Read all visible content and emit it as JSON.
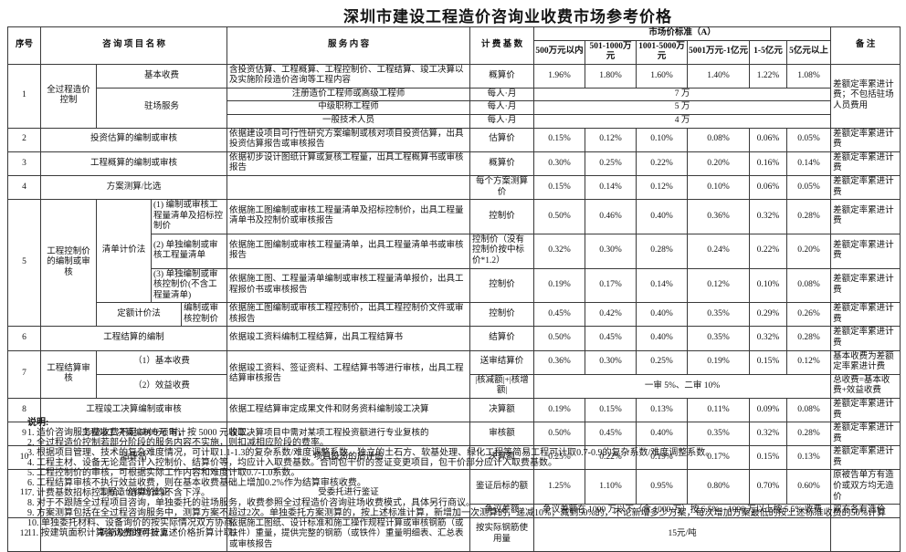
{
  "title": "深圳市建设工程造价咨询业收费市场参考价格",
  "table": {
    "header": [
      [
        {
          "t": "序号",
          "r": 2,
          "n": "col-header-seq"
        },
        {
          "t": "咨 询 项 目 名 称",
          "c": 4,
          "r": 2,
          "n": "col-header-project"
        },
        {
          "t": "服 务 内 容",
          "r": 2,
          "n": "col-header-service"
        },
        {
          "t": "计 费 基 数",
          "r": 2,
          "n": "col-header-base"
        },
        {
          "t": "市场价标准（A）",
          "c": 6,
          "n": "col-header-market-standard"
        },
        {
          "t": "备 注",
          "r": 2,
          "n": "col-header-remark"
        }
      ],
      [
        {
          "t": "500万元以内",
          "n": "col-header-range-1"
        },
        {
          "t": "501-1000万元",
          "n": "col-header-range-2"
        },
        {
          "t": "1001-5000万元",
          "n": "col-header-range-3"
        },
        {
          "t": "5001万元-1亿元",
          "n": "col-header-range-4"
        },
        {
          "t": "1-5亿元",
          "n": "col-header-range-5"
        },
        {
          "t": "5亿元以上",
          "n": "col-header-range-6"
        }
      ]
    ],
    "body": [
      [
        {
          "t": "1",
          "r": 4,
          "n": "seq-cell"
        },
        {
          "t": "全过程造价控制",
          "r": 4
        },
        {
          "t": "基本收费",
          "c": 3
        },
        {
          "t": "含投资估算、工程概算、工程控制价、工程结算、竣工决算以及实施阶段造价咨询等工程内容",
          "a": "l"
        },
        {
          "t": "概算价"
        },
        {
          "t": "1.96%"
        },
        {
          "t": "1.80%"
        },
        {
          "t": "1.60%"
        },
        {
          "t": "1.40%"
        },
        {
          "t": "1.22%"
        },
        {
          "t": "1.08%"
        },
        {
          "t": "差额定率累进计费；不包括驻场人员费用",
          "r": 4,
          "a": "l"
        }
      ],
      [
        {
          "t": "驻场服务",
          "c": 3,
          "r": 3
        },
        {
          "t": "注册造价工程师或高级工程师"
        },
        {
          "t": "每人·月"
        },
        {
          "t": "7 万",
          "c": 6
        }
      ],
      [
        {
          "t": "中级职称工程师"
        },
        {
          "t": "每人·月"
        },
        {
          "t": "5 万",
          "c": 6
        }
      ],
      [
        {
          "t": "一般技术人员"
        },
        {
          "t": "每人·月"
        },
        {
          "t": "4 万",
          "c": 6
        }
      ],
      [
        {
          "t": "2",
          "n": "seq-cell"
        },
        {
          "t": "投资估算的编制或审核",
          "c": 4
        },
        {
          "t": "依据建设项目可行性研究方案编制或核对项目投资估算，出具投资估算报告或审核报告",
          "a": "l"
        },
        {
          "t": "估算价"
        },
        {
          "t": "0.15%"
        },
        {
          "t": "0.12%"
        },
        {
          "t": "0.10%"
        },
        {
          "t": "0.08%"
        },
        {
          "t": "0.06%"
        },
        {
          "t": "0.05%"
        },
        {
          "t": "差额定率累进计费",
          "a": "l"
        }
      ],
      [
        {
          "t": "3",
          "n": "seq-cell"
        },
        {
          "t": "工程概算的编制或审核",
          "c": 4
        },
        {
          "t": "依据初步设计图纸计算或复核工程量，出具工程概算书或审核报告",
          "a": "l"
        },
        {
          "t": "概算价"
        },
        {
          "t": "0.30%"
        },
        {
          "t": "0.25%"
        },
        {
          "t": "0.22%"
        },
        {
          "t": "0.20%"
        },
        {
          "t": "0.16%"
        },
        {
          "t": "0.14%"
        },
        {
          "t": "差额定率累进计费",
          "a": "l"
        }
      ],
      [
        {
          "t": "4",
          "n": "seq-cell"
        },
        {
          "t": "方案测算/比选",
          "c": 4
        },
        {
          "t": ""
        },
        {
          "t": "每个方案测算价"
        },
        {
          "t": "0.15%"
        },
        {
          "t": "0.14%"
        },
        {
          "t": "0.12%"
        },
        {
          "t": "0.10%"
        },
        {
          "t": "0.06%"
        },
        {
          "t": "0.05%"
        },
        {
          "t": "差额定率累进计费",
          "a": "l"
        }
      ],
      [
        {
          "t": "5",
          "r": 4,
          "n": "seq-cell"
        },
        {
          "t": "工程控制价的编制或审核",
          "r": 4
        },
        {
          "t": "清单计价法",
          "r": 3
        },
        {
          "t": "(1) 编制或审核工程量清单及招标控制价",
          "c": 2,
          "a": "l"
        },
        {
          "t": "依据施工图编制或审核工程量清单及招标控制价，出具工程量清单书及控制价或审核报告",
          "a": "l"
        },
        {
          "t": "控制价"
        },
        {
          "t": "0.50%"
        },
        {
          "t": "0.46%"
        },
        {
          "t": "0.40%"
        },
        {
          "t": "0.36%"
        },
        {
          "t": "0.32%"
        },
        {
          "t": "0.28%"
        },
        {
          "t": "差额定率累进计费",
          "a": "l"
        }
      ],
      [
        {
          "t": "(2) 单独编制或审核工程量清单",
          "c": 2,
          "a": "l"
        },
        {
          "t": "依据施工图编制或审核工程量清单，出具工程量清单书或审核报告",
          "a": "l"
        },
        {
          "t": "控制价（没有控制价按中标价*1.2）",
          "a": "l"
        },
        {
          "t": "0.32%"
        },
        {
          "t": "0.30%"
        },
        {
          "t": "0.28%"
        },
        {
          "t": "0.24%"
        },
        {
          "t": "0.22%"
        },
        {
          "t": "0.20%"
        },
        {
          "t": "差额定率累进计费",
          "a": "l"
        }
      ],
      [
        {
          "t": "(3) 单独编制或审核控制价(不含工程量清单)",
          "c": 2,
          "a": "l"
        },
        {
          "t": "依据施工图、工程量清单编制或审核工程量清单报价，出具工程报价书或审核报告",
          "a": "l"
        },
        {
          "t": "控制价"
        },
        {
          "t": "0.19%"
        },
        {
          "t": "0.17%"
        },
        {
          "t": "0.14%"
        },
        {
          "t": "0.12%"
        },
        {
          "t": "0.10%"
        },
        {
          "t": "0.08%"
        },
        {
          "t": "差额定率累进计费",
          "a": "l"
        }
      ],
      [
        {
          "t": "定额计价法",
          "c": 2
        },
        {
          "t": "编制或审核控制价",
          "a": "l"
        },
        {
          "t": "依据施工图编制或审核工程控制价，出具工程控制价文件或审核报告",
          "a": "l"
        },
        {
          "t": "控制价"
        },
        {
          "t": "0.45%"
        },
        {
          "t": "0.42%"
        },
        {
          "t": "0.40%"
        },
        {
          "t": "0.35%"
        },
        {
          "t": "0.29%"
        },
        {
          "t": "0.26%"
        },
        {
          "t": "差额定率累进计费",
          "a": "l"
        }
      ],
      [
        {
          "t": "6",
          "n": "seq-cell"
        },
        {
          "t": "工程结算的编制",
          "c": 4
        },
        {
          "t": "依据竣工资料编制工程结算，出具工程结算书",
          "a": "l"
        },
        {
          "t": "结算价"
        },
        {
          "t": "0.50%"
        },
        {
          "t": "0.45%"
        },
        {
          "t": "0.40%"
        },
        {
          "t": "0.35%"
        },
        {
          "t": "0.32%"
        },
        {
          "t": "0.28%"
        },
        {
          "t": "差额定率累进计费",
          "a": "l"
        }
      ],
      [
        {
          "t": "7",
          "r": 2,
          "n": "seq-cell"
        },
        {
          "t": "工程结算审核",
          "r": 2
        },
        {
          "t": "（1）基本收费",
          "c": 3
        },
        {
          "t": "依据竣工资料、签证资料、工程结算书等进行审核，出具工程结算审核报告",
          "r": 2,
          "a": "l"
        },
        {
          "t": "送审结算价"
        },
        {
          "t": "0.36%"
        },
        {
          "t": "0.30%"
        },
        {
          "t": "0.25%"
        },
        {
          "t": "0.19%"
        },
        {
          "t": "0.15%"
        },
        {
          "t": "0.12%"
        },
        {
          "t": "基本收费为差额定率累进计费",
          "a": "l"
        }
      ],
      [
        {
          "t": "（2）效益收费",
          "c": 3
        },
        {
          "t": "|核减额|+|核增额|"
        },
        {
          "t": "一审 5%、二审 10%",
          "c": 6
        },
        {
          "t": "总收费=基本收费+效益收费",
          "a": "l"
        }
      ],
      [
        {
          "t": "8",
          "n": "seq-cell"
        },
        {
          "t": "工程竣工决算编制或审核",
          "c": 4
        },
        {
          "t": "依据工程结算审定成果文件和财务资料编制竣工决算",
          "a": "l"
        },
        {
          "t": "决算额"
        },
        {
          "t": "0.19%"
        },
        {
          "t": "0.15%"
        },
        {
          "t": "0.13%"
        },
        {
          "t": "0.11%"
        },
        {
          "t": "0.09%"
        },
        {
          "t": "0.08%"
        },
        {
          "t": "差额定率累进计费",
          "a": "l"
        }
      ],
      [
        {
          "t": "9",
          "n": "seq-cell"
        },
        {
          "t": "工程竣工决算编制专项审计",
          "c": 4
        },
        {
          "t": "竣工决算项目中需对某项工程投资额进行专业复核的",
          "a": "l"
        },
        {
          "t": "审核额"
        },
        {
          "t": "0.50%"
        },
        {
          "t": "0.45%"
        },
        {
          "t": "0.40%"
        },
        {
          "t": "0.35%"
        },
        {
          "t": "0.32%"
        },
        {
          "t": "0.28%"
        },
        {
          "t": "差额定率累进计费",
          "a": "l"
        }
      ],
      [
        {
          "t": "10",
          "n": "seq-cell"
        },
        {
          "t": "后评估",
          "c": 4
        },
        {
          "t": "项目投资的后评估"
        },
        {
          "t": "决算额"
        },
        {
          "t": "0.25%"
        },
        {
          "t": "0.22%"
        },
        {
          "t": "0.19%"
        },
        {
          "t": "0.17%"
        },
        {
          "t": "0.15%"
        },
        {
          "t": "0.13%"
        },
        {
          "t": "差额定率累进计费",
          "a": "l"
        }
      ],
      [
        {
          "t": "11",
          "r": 2,
          "n": "seq-cell"
        },
        {
          "t": "工程造价纠纷鉴证",
          "c": 4,
          "r": 2
        },
        {
          "t": "受委托进行鉴证",
          "r": 2
        },
        {
          "t": "鉴证后标的额"
        },
        {
          "t": "1.25%"
        },
        {
          "t": "1.10%"
        },
        {
          "t": "0.95%"
        },
        {
          "t": "0.80%"
        },
        {
          "t": "0.70%"
        },
        {
          "t": "0.60%"
        },
        {
          "t": "原被告单方有造价或双方均无造价",
          "a": "l"
        }
      ],
      [
        {
          "t": "争议差额"
        },
        {
          "t": "争议差额在 1000 万以下（含 1000 万）按 6.5%、1000 万以上按 5.5% 收费",
          "c": 6
        },
        {
          "t": "双方各有造价",
          "a": "l"
        }
      ],
      [
        {
          "t": "12",
          "n": "seq-cell"
        },
        {
          "t": "钢筋及预埋件计算",
          "c": 4
        },
        {
          "t": "依据施工图纸、设计标准和施工操作规程计算或审核钢筋（或铁件）重量，提供完整的钢筋（或铁件）重量明细表、汇总表或审核报告",
          "a": "l"
        },
        {
          "t": "按实际钢筋使用量"
        },
        {
          "t": "15元/吨",
          "c": 6
        },
        {
          "t": ""
        }
      ]
    ]
  },
  "notes": {
    "heading": "说明:",
    "items": [
      "1. 造价咨询服务费收费不足 5000元 时，按 5000 元收取。",
      "2. 全过程造价控制若部分阶段的服务内容不实施，则扣减相应阶段的费率。",
      "3. 根据项目管理、技术的复杂难度情况，可计取1.1-1.3的复杂系数/难度调整系数。独立的土石方、软基处理、绿化工程等简易工程可计取0.7-0.9的复杂系数/难度调整系数。",
      "4. 工程主材、设备无论是否计入控制价、结算价等，均应计入取费基数。合同包干价的签证变更项目，包干价部分应计入取费基数。",
      "5. 工程控制价的审核，可根据实际工作内容和难度计取0.7-1.0系数。",
      "6. 工程结算审核不执行效益收费，则在基本收费基础上增加0.2%作为结算审核收费。",
      "7. 计费基数招标控制价、结算价均不含下浮。",
      "8. 对于不跟随全过程项目咨询，单独委托的驻场服务，收费参照全过程造价咨询驻场收费模式，具体另行商议。",
      "9. 方案测算包括在全过程咨询服务中，测算方案不超过2次。单独委托方案测算的，按上述标准计算，新增加一次测算的，递减10%，减到50%的，不论新增多少方案，每次增加方案最低的按上述标准收费的50%计算",
      "10. 单独委托材料、设备询价的按实际情况双方协商。",
      "11. 按建筑面积计算咨询费的可按上述价格折算计取。"
    ]
  }
}
